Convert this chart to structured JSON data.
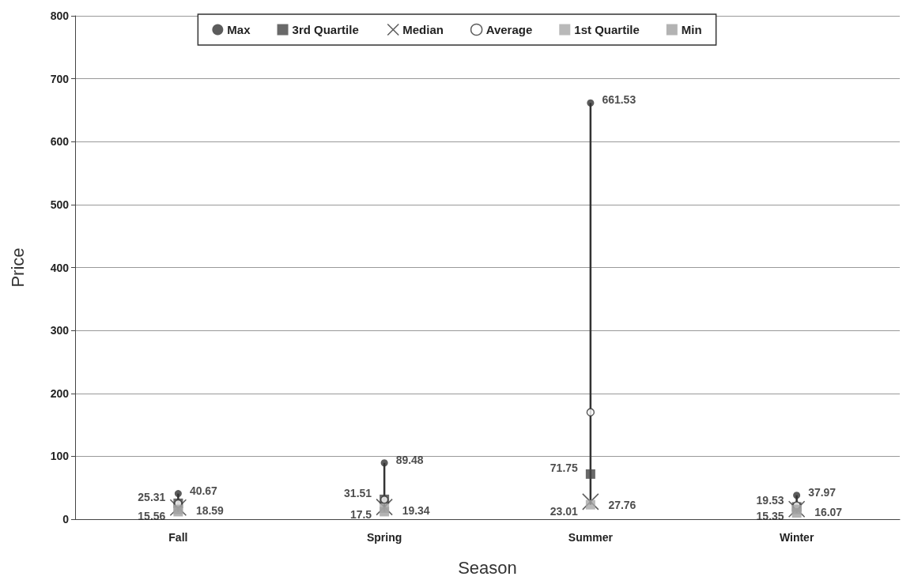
{
  "chart_data": {
    "type": "scatter",
    "xlabel": "Season",
    "ylabel": "Price",
    "categories": [
      "Fall",
      "Spring",
      "Summer",
      "Winter"
    ],
    "series": [
      {
        "name": "Max",
        "color": "#333333",
        "marker": "circle",
        "values": [
          40.67,
          89.48,
          661.53,
          37.97
        ],
        "value_labels": [
          "40.67",
          "89.48",
          "661.53",
          "37.97"
        ]
      },
      {
        "name": "3rd Quartile",
        "color": "#444444",
        "marker": "square",
        "values": [
          25.31,
          31.51,
          71.75,
          19.53
        ],
        "value_labels": [
          "25.31",
          "31.51",
          "71.75",
          "19.53"
        ]
      },
      {
        "name": "Median",
        "color": "#333333",
        "marker": "cross",
        "values": [
          18.59,
          19.34,
          27.76,
          16.07
        ],
        "value_labels": [
          "18.59",
          "19.34",
          "27.76",
          "16.07"
        ]
      },
      {
        "name": "Average",
        "color": "#333333",
        "marker": "circle",
        "values": [
          25,
          31,
          170,
          22
        ]
      },
      {
        "name": "1st Quartile",
        "color": "#a8a8a8",
        "marker": "square",
        "values": [
          15.56,
          17.5,
          23.01,
          15.35
        ],
        "value_labels": [
          "15.56",
          "17.5",
          "23.01",
          "15.35"
        ]
      },
      {
        "name": "Min",
        "color": "#a0a0a0",
        "marker": "square",
        "values": [
          12,
          12,
          null,
          10
        ]
      }
    ],
    "ylim": [
      0,
      800
    ],
    "yticks": [
      0,
      100,
      200,
      300,
      400,
      500,
      600,
      700,
      800
    ],
    "grid": "y",
    "legend": "top"
  }
}
